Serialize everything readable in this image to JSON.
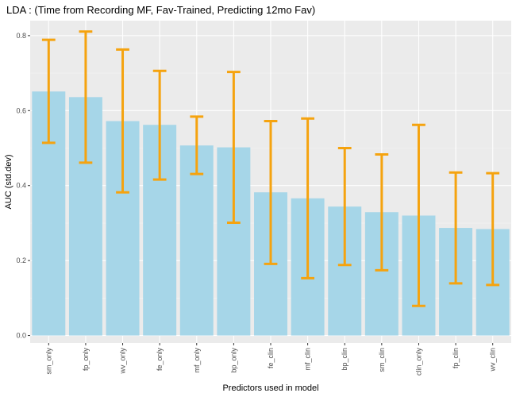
{
  "chart_data": {
    "type": "bar",
    "title": "LDA : (Time from Recording MF, Fav-Trained, Predicting 12mo Fav)",
    "xlabel": "Predictors used in model",
    "ylabel": "AUC (std.dev)",
    "categories": [
      "sm_only",
      "fp_only",
      "wv_only",
      "fe_only",
      "mf_only",
      "bp_only",
      "fe_clin",
      "mf_clin",
      "bp_clin",
      "sm_clin",
      "clin_only",
      "fp_clin",
      "wv_clin"
    ],
    "values": [
      0.651,
      0.636,
      0.572,
      0.562,
      0.507,
      0.502,
      0.382,
      0.366,
      0.344,
      0.329,
      0.32,
      0.287,
      0.284
    ],
    "error_low": [
      0.514,
      0.461,
      0.382,
      0.416,
      0.431,
      0.301,
      0.191,
      0.153,
      0.188,
      0.174,
      0.079,
      0.139,
      0.135
    ],
    "error_high": [
      0.789,
      0.811,
      0.763,
      0.706,
      0.584,
      0.703,
      0.572,
      0.579,
      0.5,
      0.483,
      0.562,
      0.435,
      0.433
    ],
    "ylim": [
      -0.02,
      0.84
    ],
    "yticks": [
      0.0,
      0.2,
      0.4,
      0.6,
      0.8
    ],
    "ytick_labels": [
      "0.0",
      "0.2",
      "0.4",
      "0.6",
      "0.8"
    ],
    "grid": true,
    "legend": "none",
    "colors": {
      "bar": "#a6d6e8",
      "error_bar": "#f5a30f",
      "panel": "#ebebeb",
      "grid_major": "#ffffff",
      "grid_minor": "#f5f5f5"
    }
  }
}
